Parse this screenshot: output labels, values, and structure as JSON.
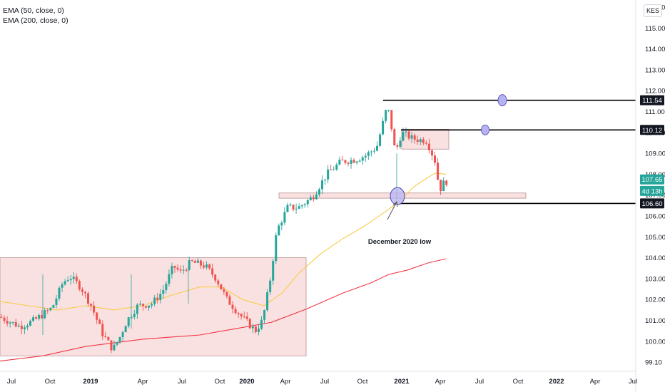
{
  "legend": {
    "ema50": "EMA (50, close, 0)",
    "ema200": "EMA (200, close, 0)"
  },
  "currency": "KES",
  "chart_data": {
    "type": "candlestick",
    "y_ticks": [
      "116.00",
      "115.00",
      "114.00",
      "113.00",
      "112.00",
      "111.00",
      "110.00",
      "109.00",
      "108.00",
      "107.00",
      "106.00",
      "105.00",
      "104.00",
      "103.00",
      "102.00",
      "101.00",
      "100.00",
      "99.10"
    ],
    "x_ticks": [
      "Jul",
      "Oct",
      "2019",
      "Apr",
      "Jul",
      "Oct",
      "2020",
      "Apr",
      "Jul",
      "Oct",
      "2021",
      "Apr",
      "Jul",
      "Oct",
      "2022",
      "Apr",
      "Jul"
    ],
    "x_bold": [
      "2019",
      "2020",
      "2021",
      "2022"
    ],
    "price_labels": [
      {
        "text": "111.54",
        "style": "black"
      },
      {
        "text": "110.12",
        "style": "black"
      },
      {
        "text": "107.65",
        "style": "green"
      },
      {
        "text": "4d 13h",
        "style": "green"
      },
      {
        "text": "106.60",
        "style": "black"
      }
    ],
    "annotation": "December 2020 low",
    "horizontal_levels": [
      111.54,
      110.12,
      106.6
    ],
    "zones": [
      {
        "name": "2019 range",
        "y_low": 99.3,
        "y_high": 104.0
      },
      {
        "name": "support",
        "y_low": 106.85,
        "y_high": 107.1
      },
      {
        "name": "consolidation",
        "y_low": 109.2,
        "y_high": 110.15
      }
    ],
    "colors": {
      "up": "#26a69a",
      "down": "#ef5350",
      "ema50": "#f7cb46",
      "ema200": "#f23645",
      "zone": "#f8d7d7"
    },
    "current_price": 107.65
  }
}
